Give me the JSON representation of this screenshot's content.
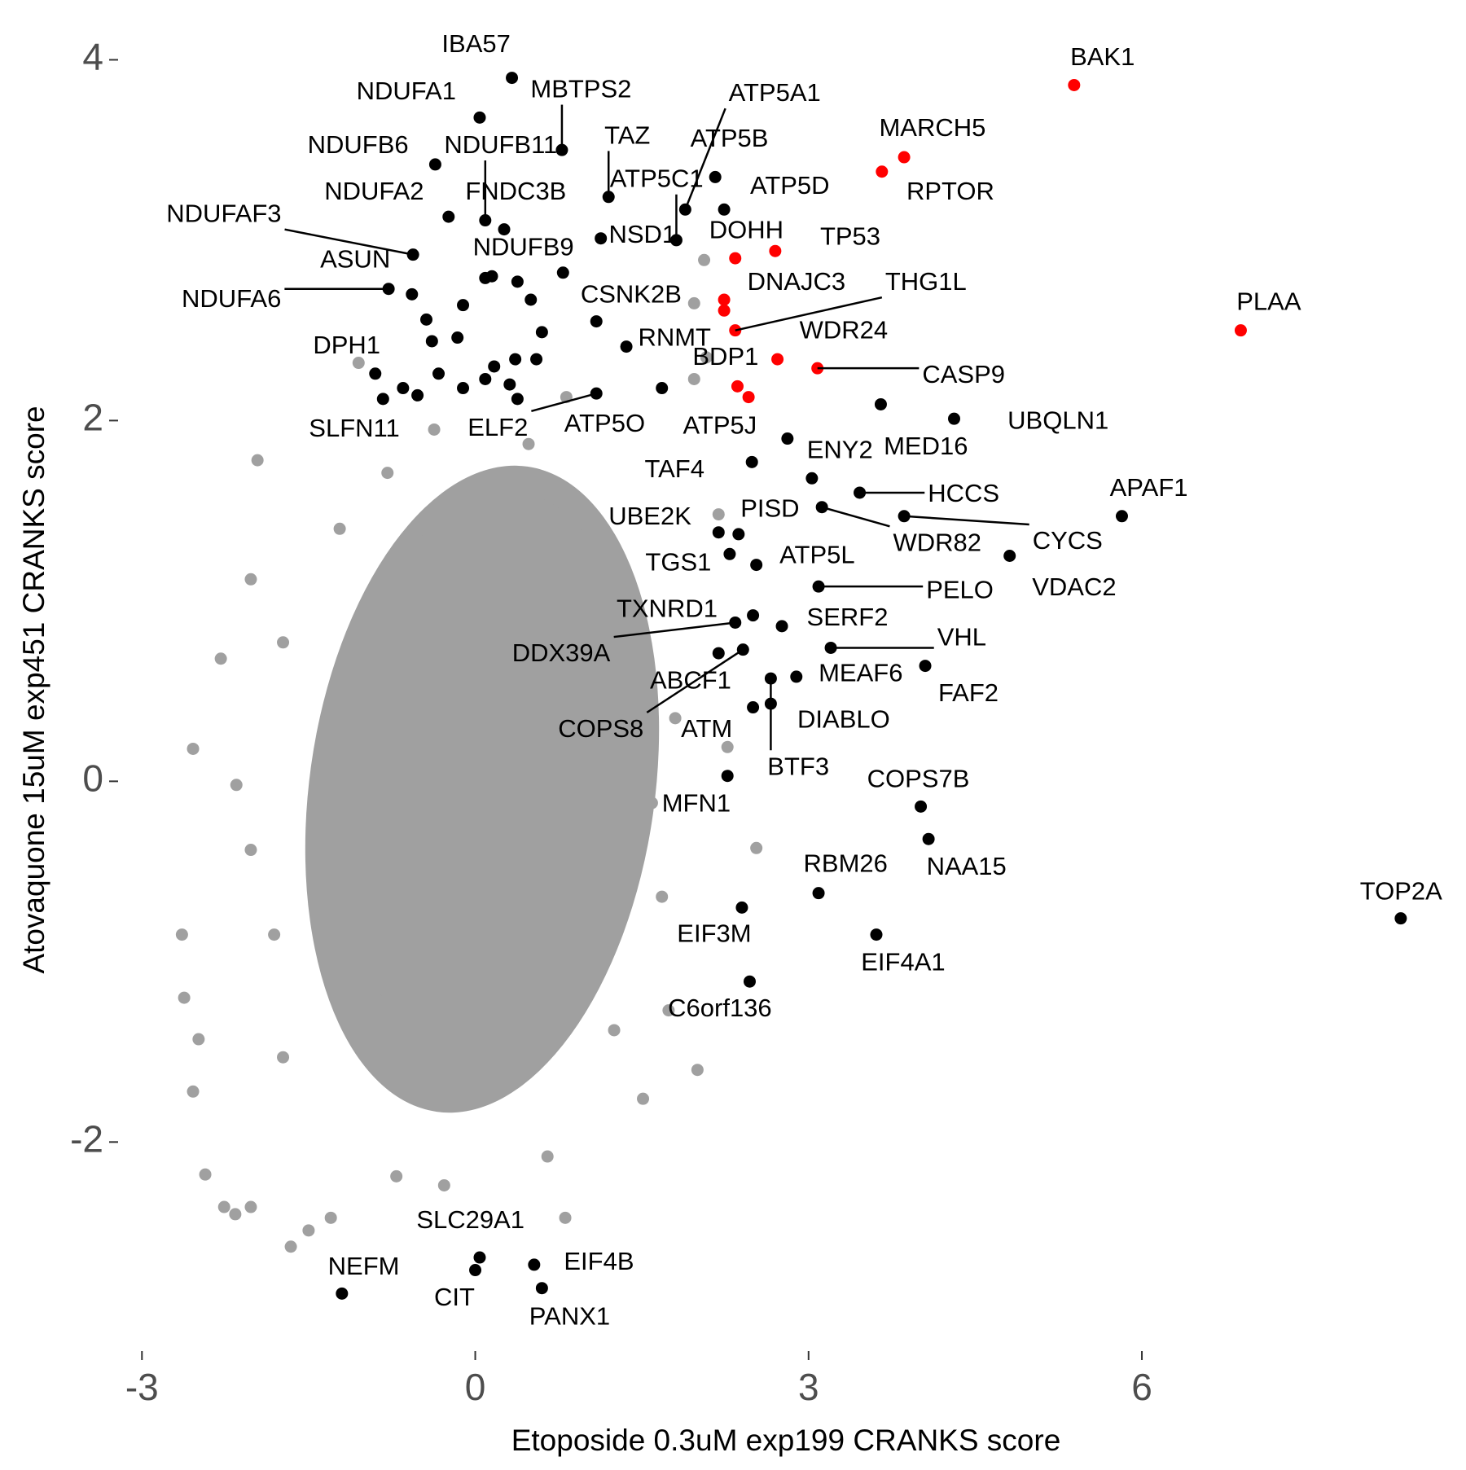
{
  "chart_data": {
    "type": "scatter",
    "x_label": "Etoposide 0.3uM exp199 CRANKS score",
    "y_label": "Atovaquone 15uM exp451 CRANKS score",
    "xlim": [
      -3.2,
      8.8
    ],
    "ylim": [
      -3.15,
      4.3
    ],
    "xticks": [
      -3,
      0,
      3,
      6
    ],
    "yticks": [
      -2,
      0,
      2,
      4
    ],
    "grid": false,
    "series": [
      {
        "color": "#a0a0a0",
        "x": [
          -1.05,
          -1.96,
          -2.54,
          -2.64,
          -2.62,
          -2.29,
          -2.02,
          -2.26,
          -2.16,
          -2.02,
          -1.5,
          -1.66,
          -1.3,
          -2.43,
          -2.54,
          -2.49,
          2.0,
          2.53,
          2.27,
          1.97,
          2.08,
          2.06,
          1.97,
          2.19,
          1.74,
          1.51,
          0.81,
          -0.28,
          -0.71,
          0.65,
          1.59,
          1.8,
          0.82,
          -0.37,
          -1.22,
          -1.73,
          -1.81,
          -1.73,
          1.25,
          1.68,
          1.16,
          0.48,
          -0.79,
          -2.02,
          -2.15
        ],
        "y": [
          2.32,
          1.78,
          0.18,
          -0.85,
          -1.2,
          0.68,
          1.12,
          -2.36,
          -2.4,
          -2.36,
          -2.49,
          -2.58,
          -2.42,
          -2.18,
          -1.72,
          -1.43,
          -1.6,
          -0.37,
          0.19,
          2.23,
          2.35,
          2.89,
          2.65,
          1.48,
          -1.27,
          -1.76,
          -2.42,
          -2.24,
          -2.19,
          -2.08,
          -0.12,
          0.35,
          2.13,
          1.95,
          1.4,
          0.77,
          -0.85,
          -1.53,
          -1.38,
          -0.64,
          1.4,
          1.87,
          1.71,
          -0.38,
          -0.02
        ]
      },
      {
        "color": "#000000",
        "labels": [
          "IBA57",
          "NDUFA1",
          "MBTPS2",
          "NDUFB6",
          "NDUFB11",
          "NDUFA2",
          "FNDC3B",
          "TAZ",
          "ATP5A1",
          "ATP5B",
          "ATP5C1",
          "ATP5D",
          "NSD1",
          "NDUFAF3",
          "ASUN",
          "NDUFA6",
          "NDUFB9",
          "CSNK2B",
          "RNMT",
          "DPH1",
          "SLFN11",
          "ELF2",
          "ATP5O",
          "ATP5J",
          "MED16",
          "UBQLN1",
          "TAF4",
          "ENY2",
          "HCCS",
          "APAF1",
          "WDR82",
          "CYCS",
          "UBE2K",
          "PISD",
          "VDAC2",
          "TGS1",
          "ATP5L",
          "PELO",
          "TXNRD1",
          "SERF2",
          "DDX39A",
          "VHL",
          "MEAF6",
          "FAF2",
          "ABCF1",
          "COPS8",
          "ATM",
          "DIABLO",
          "BTF3",
          "MFN1",
          "COPS7B",
          "NAA15",
          "RBM26",
          "TOP2A",
          "EIF3M",
          "EIF4A1",
          "C6orf136",
          "SLC29A1",
          "NEFM",
          "EIF4B",
          "CIT",
          "PANX1",
          null,
          null,
          null,
          null,
          null,
          null,
          null,
          null,
          null,
          null,
          null,
          null,
          null,
          null,
          null,
          null,
          null,
          null,
          null
        ],
        "x": [
          0.33,
          0.04,
          0.78,
          -0.36,
          0.09,
          -0.24,
          0.26,
          1.2,
          1.89,
          2.16,
          1.81,
          2.24,
          1.13,
          -0.56,
          -0.57,
          -0.78,
          0.09,
          1.09,
          1.36,
          -0.9,
          -0.83,
          1.09,
          1.68,
          2.81,
          3.65,
          4.31,
          2.49,
          3.03,
          3.46,
          5.82,
          3.12,
          3.86,
          2.19,
          2.37,
          4.81,
          2.29,
          2.53,
          3.09,
          2.5,
          2.76,
          2.34,
          3.2,
          2.89,
          4.05,
          2.19,
          2.41,
          2.5,
          2.66,
          2.66,
          2.27,
          4.01,
          4.08,
          3.09,
          8.33,
          2.4,
          3.61,
          2.47,
          0.04,
          -1.2,
          0.53,
          0.0,
          0.6,
          -0.11,
          -0.44,
          -0.39,
          -0.16,
          -0.33,
          -0.11,
          0.17,
          0.36,
          0.31,
          0.38,
          0.6,
          0.55,
          -0.65,
          0.5,
          0.79,
          0.38,
          0.15,
          -0.52,
          0.09
        ],
        "y": [
          3.9,
          3.68,
          3.5,
          3.42,
          3.11,
          3.13,
          3.06,
          3.24,
          3.17,
          3.35,
          3.0,
          3.17,
          3.01,
          2.92,
          2.7,
          2.73,
          2.79,
          2.55,
          2.41,
          2.26,
          2.12,
          2.15,
          2.18,
          1.9,
          2.09,
          2.01,
          1.77,
          1.68,
          1.6,
          1.47,
          1.52,
          1.47,
          1.38,
          1.37,
          1.25,
          1.26,
          1.2,
          1.08,
          0.92,
          0.86,
          0.88,
          0.74,
          0.58,
          0.64,
          0.71,
          0.73,
          0.41,
          0.43,
          0.57,
          0.03,
          -0.14,
          -0.32,
          -0.62,
          -0.76,
          -0.7,
          -0.85,
          -1.11,
          -2.64,
          -2.84,
          -2.68,
          -2.71,
          -2.81,
          2.64,
          2.56,
          2.44,
          2.46,
          2.26,
          2.18,
          2.3,
          2.34,
          2.2,
          2.12,
          2.49,
          2.34,
          2.18,
          2.67,
          2.82,
          2.77,
          2.8,
          2.14,
          2.23
        ]
      },
      {
        "color": "#ff0000",
        "labels": [
          "BAK1",
          "MARCH5",
          "RPTOR",
          "TP53",
          "DOHH",
          "DNAJC3",
          null,
          "THG1L",
          "WDR24",
          "CASP9",
          "BDP1",
          null,
          "PLAA"
        ],
        "x": [
          5.39,
          3.86,
          3.66,
          2.7,
          2.34,
          2.24,
          2.24,
          2.34,
          2.72,
          3.08,
          2.36,
          2.46,
          6.89
        ],
        "y": [
          3.86,
          3.46,
          3.38,
          2.94,
          2.9,
          2.67,
          2.61,
          2.5,
          2.34,
          2.29,
          2.19,
          2.13,
          2.5
        ]
      }
    ]
  }
}
